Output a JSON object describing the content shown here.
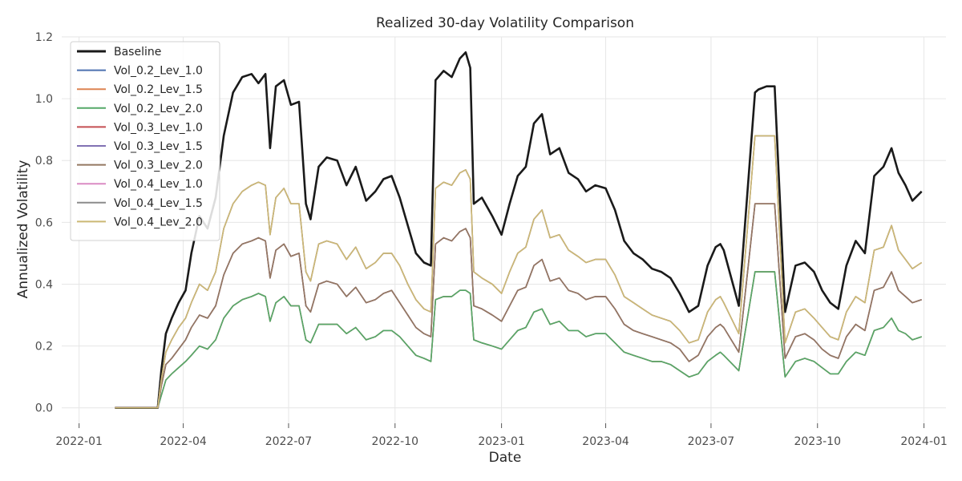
{
  "chart_data": {
    "type": "line",
    "title": "Realized 30-day Volatility Comparison",
    "xlabel": "Date",
    "ylabel": "Annualized Volatility",
    "xlim": [
      "2021-12-17",
      "2024-01-20"
    ],
    "ylim": [
      -0.05,
      1.2
    ],
    "grid": true,
    "legend_position": "top-left",
    "y_ticks": [
      0.0,
      0.2,
      0.4,
      0.6,
      0.8,
      1.0,
      1.2
    ],
    "y_tick_labels": [
      "0.0",
      "0.2",
      "0.4",
      "0.6",
      "0.8",
      "1.0",
      "1.2"
    ],
    "x_ticks": [
      "2022-01-01",
      "2022-04-01",
      "2022-07-01",
      "2022-10-01",
      "2023-01-01",
      "2023-04-01",
      "2023-07-01",
      "2023-10-01",
      "2024-01-01"
    ],
    "x_tick_labels": [
      "2022-01",
      "2022-04",
      "2022-07",
      "2022-10",
      "2023-01",
      "2023-04",
      "2023-07",
      "2023-10",
      "2024-01"
    ],
    "x": [
      "2022-02-01",
      "2022-03-10",
      "2022-03-13",
      "2022-03-17",
      "2022-03-22",
      "2022-03-28",
      "2022-04-03",
      "2022-04-08",
      "2022-04-15",
      "2022-04-22",
      "2022-04-29",
      "2022-05-06",
      "2022-05-14",
      "2022-05-22",
      "2022-05-30",
      "2022-06-05",
      "2022-06-11",
      "2022-06-15",
      "2022-06-20",
      "2022-06-27",
      "2022-07-03",
      "2022-07-10",
      "2022-07-16",
      "2022-07-20",
      "2022-07-27",
      "2022-08-03",
      "2022-08-12",
      "2022-08-20",
      "2022-08-28",
      "2022-09-06",
      "2022-09-14",
      "2022-09-21",
      "2022-09-28",
      "2022-10-05",
      "2022-10-12",
      "2022-10-19",
      "2022-10-26",
      "2022-11-01",
      "2022-11-05",
      "2022-11-12",
      "2022-11-19",
      "2022-11-26",
      "2022-12-01",
      "2022-12-05",
      "2022-12-08",
      "2022-12-15",
      "2022-12-24",
      "2023-01-01",
      "2023-01-08",
      "2023-01-15",
      "2023-01-22",
      "2023-01-29",
      "2023-02-05",
      "2023-02-12",
      "2023-02-20",
      "2023-02-28",
      "2023-03-08",
      "2023-03-15",
      "2023-03-23",
      "2023-04-01",
      "2023-04-09",
      "2023-04-17",
      "2023-04-25",
      "2023-05-03",
      "2023-05-11",
      "2023-05-19",
      "2023-05-27",
      "2023-06-04",
      "2023-06-12",
      "2023-06-20",
      "2023-06-28",
      "2023-07-05",
      "2023-07-09",
      "2023-07-12",
      "2023-07-25",
      "2023-08-08",
      "2023-08-11",
      "2023-08-18",
      "2023-08-25",
      "2023-09-03",
      "2023-09-12",
      "2023-09-20",
      "2023-09-28",
      "2023-10-05",
      "2023-10-12",
      "2023-10-19",
      "2023-10-26",
      "2023-11-03",
      "2023-11-11",
      "2023-11-19",
      "2023-11-27",
      "2023-12-04",
      "2023-12-10",
      "2023-12-16",
      "2023-12-22",
      "2023-12-30"
    ],
    "series": [
      {
        "name": "Baseline",
        "color": "#1a1a1a",
        "width": 2.6,
        "values": [
          0.0,
          0.0,
          0.12,
          0.24,
          0.29,
          0.34,
          0.38,
          0.5,
          0.62,
          0.58,
          0.68,
          0.88,
          1.02,
          1.07,
          1.08,
          1.05,
          1.08,
          0.84,
          1.04,
          1.06,
          0.98,
          0.99,
          0.66,
          0.61,
          0.78,
          0.81,
          0.8,
          0.72,
          0.78,
          0.67,
          0.7,
          0.74,
          0.75,
          0.68,
          0.59,
          0.5,
          0.47,
          0.46,
          1.06,
          1.09,
          1.07,
          1.13,
          1.15,
          1.1,
          0.66,
          0.68,
          0.62,
          0.56,
          0.66,
          0.75,
          0.78,
          0.92,
          0.95,
          0.82,
          0.84,
          0.76,
          0.74,
          0.7,
          0.72,
          0.71,
          0.64,
          0.54,
          0.5,
          0.48,
          0.45,
          0.44,
          0.42,
          0.37,
          0.31,
          0.33,
          0.46,
          0.52,
          0.53,
          0.51,
          0.33,
          1.02,
          1.03,
          1.04,
          1.04,
          0.31,
          0.46,
          0.47,
          0.44,
          0.38,
          0.34,
          0.32,
          0.46,
          0.54,
          0.5,
          0.75,
          0.78,
          0.84,
          0.76,
          0.72,
          0.67,
          0.7
        ]
      },
      {
        "name": "Vol_0.2_Lev_1.0",
        "color": "#4c72b0",
        "width": 1.6,
        "values": [
          0.0,
          0.0,
          0.04,
          0.09,
          0.11,
          0.13,
          0.15,
          0.17,
          0.2,
          0.19,
          0.22,
          0.29,
          0.33,
          0.35,
          0.36,
          0.37,
          0.36,
          0.28,
          0.34,
          0.36,
          0.33,
          0.33,
          0.22,
          0.21,
          0.27,
          0.27,
          0.27,
          0.24,
          0.26,
          0.22,
          0.23,
          0.25,
          0.25,
          0.23,
          0.2,
          0.17,
          0.16,
          0.15,
          0.35,
          0.36,
          0.36,
          0.38,
          0.38,
          0.37,
          0.22,
          0.21,
          0.2,
          0.19,
          0.22,
          0.25,
          0.26,
          0.31,
          0.32,
          0.27,
          0.28,
          0.25,
          0.25,
          0.23,
          0.24,
          0.24,
          0.21,
          0.18,
          0.17,
          0.16,
          0.15,
          0.15,
          0.14,
          0.12,
          0.1,
          0.11,
          0.15,
          0.17,
          0.18,
          0.17,
          0.12,
          0.44,
          0.44,
          0.44,
          0.44,
          0.1,
          0.15,
          0.16,
          0.15,
          0.13,
          0.11,
          0.11,
          0.15,
          0.18,
          0.17,
          0.25,
          0.26,
          0.29,
          0.25,
          0.24,
          0.22,
          0.23
        ]
      },
      {
        "name": "Vol_0.2_Lev_1.5",
        "color": "#dd8452",
        "width": 1.6,
        "values": [
          0.0,
          0.0,
          0.04,
          0.09,
          0.11,
          0.13,
          0.15,
          0.17,
          0.2,
          0.19,
          0.22,
          0.29,
          0.33,
          0.35,
          0.36,
          0.37,
          0.36,
          0.28,
          0.34,
          0.36,
          0.33,
          0.33,
          0.22,
          0.21,
          0.27,
          0.27,
          0.27,
          0.24,
          0.26,
          0.22,
          0.23,
          0.25,
          0.25,
          0.23,
          0.2,
          0.17,
          0.16,
          0.15,
          0.35,
          0.36,
          0.36,
          0.38,
          0.38,
          0.37,
          0.22,
          0.21,
          0.2,
          0.19,
          0.22,
          0.25,
          0.26,
          0.31,
          0.32,
          0.27,
          0.28,
          0.25,
          0.25,
          0.23,
          0.24,
          0.24,
          0.21,
          0.18,
          0.17,
          0.16,
          0.15,
          0.15,
          0.14,
          0.12,
          0.1,
          0.11,
          0.15,
          0.17,
          0.18,
          0.17,
          0.12,
          0.44,
          0.44,
          0.44,
          0.44,
          0.1,
          0.15,
          0.16,
          0.15,
          0.13,
          0.11,
          0.11,
          0.15,
          0.18,
          0.17,
          0.25,
          0.26,
          0.29,
          0.25,
          0.24,
          0.22,
          0.23
        ]
      },
      {
        "name": "Vol_0.2_Lev_2.0",
        "color": "#55a868",
        "width": 1.6,
        "values": [
          0.0,
          0.0,
          0.04,
          0.09,
          0.11,
          0.13,
          0.15,
          0.17,
          0.2,
          0.19,
          0.22,
          0.29,
          0.33,
          0.35,
          0.36,
          0.37,
          0.36,
          0.28,
          0.34,
          0.36,
          0.33,
          0.33,
          0.22,
          0.21,
          0.27,
          0.27,
          0.27,
          0.24,
          0.26,
          0.22,
          0.23,
          0.25,
          0.25,
          0.23,
          0.2,
          0.17,
          0.16,
          0.15,
          0.35,
          0.36,
          0.36,
          0.38,
          0.38,
          0.37,
          0.22,
          0.21,
          0.2,
          0.19,
          0.22,
          0.25,
          0.26,
          0.31,
          0.32,
          0.27,
          0.28,
          0.25,
          0.25,
          0.23,
          0.24,
          0.24,
          0.21,
          0.18,
          0.17,
          0.16,
          0.15,
          0.15,
          0.14,
          0.12,
          0.1,
          0.11,
          0.15,
          0.17,
          0.18,
          0.17,
          0.12,
          0.44,
          0.44,
          0.44,
          0.44,
          0.1,
          0.15,
          0.16,
          0.15,
          0.13,
          0.11,
          0.11,
          0.15,
          0.18,
          0.17,
          0.25,
          0.26,
          0.29,
          0.25,
          0.24,
          0.22,
          0.23
        ]
      },
      {
        "name": "Vol_0.3_Lev_1.0",
        "color": "#c44e52",
        "width": 1.6,
        "values": [
          0.0,
          0.0,
          0.07,
          0.14,
          0.16,
          0.19,
          0.22,
          0.26,
          0.3,
          0.29,
          0.33,
          0.43,
          0.5,
          0.53,
          0.54,
          0.55,
          0.54,
          0.42,
          0.51,
          0.53,
          0.49,
          0.5,
          0.33,
          0.31,
          0.4,
          0.41,
          0.4,
          0.36,
          0.39,
          0.34,
          0.35,
          0.37,
          0.38,
          0.34,
          0.3,
          0.26,
          0.24,
          0.23,
          0.53,
          0.55,
          0.54,
          0.57,
          0.58,
          0.55,
          0.33,
          0.32,
          0.3,
          0.28,
          0.33,
          0.38,
          0.39,
          0.46,
          0.48,
          0.41,
          0.42,
          0.38,
          0.37,
          0.35,
          0.36,
          0.36,
          0.32,
          0.27,
          0.25,
          0.24,
          0.23,
          0.22,
          0.21,
          0.19,
          0.15,
          0.17,
          0.23,
          0.26,
          0.27,
          0.26,
          0.18,
          0.66,
          0.66,
          0.66,
          0.66,
          0.16,
          0.23,
          0.24,
          0.22,
          0.19,
          0.17,
          0.16,
          0.23,
          0.27,
          0.25,
          0.38,
          0.39,
          0.44,
          0.38,
          0.36,
          0.34,
          0.35
        ]
      },
      {
        "name": "Vol_0.3_Lev_1.5",
        "color": "#8172b3",
        "width": 1.6,
        "values": [
          0.0,
          0.0,
          0.07,
          0.14,
          0.16,
          0.19,
          0.22,
          0.26,
          0.3,
          0.29,
          0.33,
          0.43,
          0.5,
          0.53,
          0.54,
          0.55,
          0.54,
          0.42,
          0.51,
          0.53,
          0.49,
          0.5,
          0.33,
          0.31,
          0.4,
          0.41,
          0.4,
          0.36,
          0.39,
          0.34,
          0.35,
          0.37,
          0.38,
          0.34,
          0.3,
          0.26,
          0.24,
          0.23,
          0.53,
          0.55,
          0.54,
          0.57,
          0.58,
          0.55,
          0.33,
          0.32,
          0.3,
          0.28,
          0.33,
          0.38,
          0.39,
          0.46,
          0.48,
          0.41,
          0.42,
          0.38,
          0.37,
          0.35,
          0.36,
          0.36,
          0.32,
          0.27,
          0.25,
          0.24,
          0.23,
          0.22,
          0.21,
          0.19,
          0.15,
          0.17,
          0.23,
          0.26,
          0.27,
          0.26,
          0.18,
          0.66,
          0.66,
          0.66,
          0.66,
          0.16,
          0.23,
          0.24,
          0.22,
          0.19,
          0.17,
          0.16,
          0.23,
          0.27,
          0.25,
          0.38,
          0.39,
          0.44,
          0.38,
          0.36,
          0.34,
          0.35
        ]
      },
      {
        "name": "Vol_0.3_Lev_2.0",
        "color": "#937860",
        "width": 1.6,
        "values": [
          0.0,
          0.0,
          0.07,
          0.14,
          0.16,
          0.19,
          0.22,
          0.26,
          0.3,
          0.29,
          0.33,
          0.43,
          0.5,
          0.53,
          0.54,
          0.55,
          0.54,
          0.42,
          0.51,
          0.53,
          0.49,
          0.5,
          0.33,
          0.31,
          0.4,
          0.41,
          0.4,
          0.36,
          0.39,
          0.34,
          0.35,
          0.37,
          0.38,
          0.34,
          0.3,
          0.26,
          0.24,
          0.23,
          0.53,
          0.55,
          0.54,
          0.57,
          0.58,
          0.55,
          0.33,
          0.32,
          0.3,
          0.28,
          0.33,
          0.38,
          0.39,
          0.46,
          0.48,
          0.41,
          0.42,
          0.38,
          0.37,
          0.35,
          0.36,
          0.36,
          0.32,
          0.27,
          0.25,
          0.24,
          0.23,
          0.22,
          0.21,
          0.19,
          0.15,
          0.17,
          0.23,
          0.26,
          0.27,
          0.26,
          0.18,
          0.66,
          0.66,
          0.66,
          0.66,
          0.16,
          0.23,
          0.24,
          0.22,
          0.19,
          0.17,
          0.16,
          0.23,
          0.27,
          0.25,
          0.38,
          0.39,
          0.44,
          0.38,
          0.36,
          0.34,
          0.35
        ]
      },
      {
        "name": "Vol_0.4_Lev_1.0",
        "color": "#da8bc3",
        "width": 1.6,
        "values": [
          0.0,
          0.0,
          0.09,
          0.18,
          0.22,
          0.26,
          0.29,
          0.34,
          0.4,
          0.38,
          0.44,
          0.58,
          0.66,
          0.7,
          0.72,
          0.73,
          0.72,
          0.56,
          0.68,
          0.71,
          0.66,
          0.66,
          0.44,
          0.41,
          0.53,
          0.54,
          0.53,
          0.48,
          0.52,
          0.45,
          0.47,
          0.5,
          0.5,
          0.46,
          0.4,
          0.35,
          0.32,
          0.31,
          0.71,
          0.73,
          0.72,
          0.76,
          0.77,
          0.74,
          0.44,
          0.42,
          0.4,
          0.37,
          0.44,
          0.5,
          0.52,
          0.61,
          0.64,
          0.55,
          0.56,
          0.51,
          0.49,
          0.47,
          0.48,
          0.48,
          0.43,
          0.36,
          0.34,
          0.32,
          0.3,
          0.29,
          0.28,
          0.25,
          0.21,
          0.22,
          0.31,
          0.35,
          0.36,
          0.34,
          0.24,
          0.88,
          0.88,
          0.88,
          0.88,
          0.21,
          0.31,
          0.32,
          0.29,
          0.26,
          0.23,
          0.22,
          0.31,
          0.36,
          0.34,
          0.51,
          0.52,
          0.59,
          0.51,
          0.48,
          0.45,
          0.47
        ]
      },
      {
        "name": "Vol_0.4_Lev_1.5",
        "color": "#8c8c8c",
        "width": 1.6,
        "values": [
          0.0,
          0.0,
          0.09,
          0.18,
          0.22,
          0.26,
          0.29,
          0.34,
          0.4,
          0.38,
          0.44,
          0.58,
          0.66,
          0.7,
          0.72,
          0.73,
          0.72,
          0.56,
          0.68,
          0.71,
          0.66,
          0.66,
          0.44,
          0.41,
          0.53,
          0.54,
          0.53,
          0.48,
          0.52,
          0.45,
          0.47,
          0.5,
          0.5,
          0.46,
          0.4,
          0.35,
          0.32,
          0.31,
          0.71,
          0.73,
          0.72,
          0.76,
          0.77,
          0.74,
          0.44,
          0.42,
          0.4,
          0.37,
          0.44,
          0.5,
          0.52,
          0.61,
          0.64,
          0.55,
          0.56,
          0.51,
          0.49,
          0.47,
          0.48,
          0.48,
          0.43,
          0.36,
          0.34,
          0.32,
          0.3,
          0.29,
          0.28,
          0.25,
          0.21,
          0.22,
          0.31,
          0.35,
          0.36,
          0.34,
          0.24,
          0.88,
          0.88,
          0.88,
          0.88,
          0.21,
          0.31,
          0.32,
          0.29,
          0.26,
          0.23,
          0.22,
          0.31,
          0.36,
          0.34,
          0.51,
          0.52,
          0.59,
          0.51,
          0.48,
          0.45,
          0.47
        ]
      },
      {
        "name": "Vol_0.4_Lev_2.0",
        "color": "#ccb974",
        "width": 1.6,
        "values": [
          0.0,
          0.0,
          0.09,
          0.18,
          0.22,
          0.26,
          0.29,
          0.34,
          0.4,
          0.38,
          0.44,
          0.58,
          0.66,
          0.7,
          0.72,
          0.73,
          0.72,
          0.56,
          0.68,
          0.71,
          0.66,
          0.66,
          0.44,
          0.41,
          0.53,
          0.54,
          0.53,
          0.48,
          0.52,
          0.45,
          0.47,
          0.5,
          0.5,
          0.46,
          0.4,
          0.35,
          0.32,
          0.31,
          0.71,
          0.73,
          0.72,
          0.76,
          0.77,
          0.74,
          0.44,
          0.42,
          0.4,
          0.37,
          0.44,
          0.5,
          0.52,
          0.61,
          0.64,
          0.55,
          0.56,
          0.51,
          0.49,
          0.47,
          0.48,
          0.48,
          0.43,
          0.36,
          0.34,
          0.32,
          0.3,
          0.29,
          0.28,
          0.25,
          0.21,
          0.22,
          0.31,
          0.35,
          0.36,
          0.34,
          0.24,
          0.88,
          0.88,
          0.88,
          0.88,
          0.21,
          0.31,
          0.32,
          0.29,
          0.26,
          0.23,
          0.22,
          0.31,
          0.36,
          0.34,
          0.51,
          0.52,
          0.59,
          0.51,
          0.48,
          0.45,
          0.47
        ]
      }
    ]
  }
}
